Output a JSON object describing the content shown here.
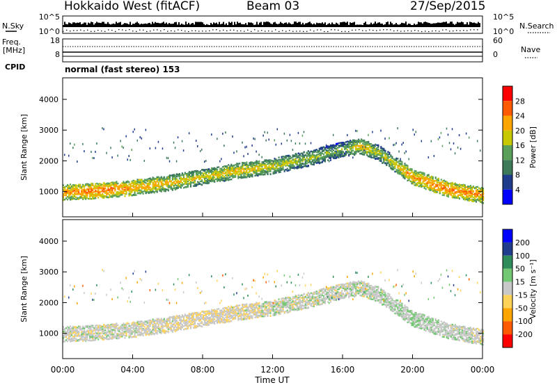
{
  "header": {
    "title": "Hokkaido West (fitACF)",
    "beam": "Beam 03",
    "date": "27/Sep/2015"
  },
  "noise_panel": {
    "left_label": "N.Sky",
    "right_label": "N.Search",
    "left_ticks": [
      "10^5",
      "10^0"
    ],
    "right_ticks": [
      "10^5",
      "10^0"
    ]
  },
  "freq_panel": {
    "left_label_line1": "Freq.",
    "left_label_line2": "[MHz]",
    "right_label": "Nave",
    "left_ticks": [
      "18",
      "8"
    ],
    "right_ticks": [
      "60",
      "0"
    ],
    "cpid_label": "CPID",
    "cpid_text": "normal (fast stereo) 153"
  },
  "colors": {
    "power_scale": [
      "#0000ff",
      "#1f3d8c",
      "#3d7a5a",
      "#5aa05a",
      "#c8c800",
      "#ffa500",
      "#ff5a00",
      "#ff0000"
    ],
    "velocity_scale": [
      "#ff0000",
      "#ff5a00",
      "#ffa500",
      "#ffd25a",
      "#c8c8c8",
      "#73c873",
      "#2d8c5a",
      "#1f3d8c",
      "#0000ff"
    ]
  },
  "chart_data": [
    {
      "type": "heatmap",
      "title": "",
      "xlabel": "Time UT",
      "ylabel": "Slant Range [km]",
      "x_ticks": [
        "00:00",
        "04:00",
        "08:00",
        "12:00",
        "16:00",
        "20:00",
        "00:00"
      ],
      "y_ticks": [
        "1000",
        "2000",
        "3000",
        "4000"
      ],
      "xlim": [
        0,
        24
      ],
      "ylim": [
        180,
        4700
      ],
      "colorbar": {
        "label": "Power [dB]",
        "ticks": [
          "28",
          "24",
          "20",
          "16",
          "12",
          "8",
          "4"
        ],
        "range": [
          0,
          30
        ]
      },
      "scatter_band": [
        {
          "time": 0,
          "range_km": 1000,
          "power_db": 22
        },
        {
          "time": 2,
          "range_km": 1050,
          "power_db": 24
        },
        {
          "time": 4,
          "range_km": 1150,
          "power_db": 22
        },
        {
          "time": 6,
          "range_km": 1300,
          "power_db": 20
        },
        {
          "time": 8,
          "range_km": 1500,
          "power_db": 18
        },
        {
          "time": 10,
          "range_km": 1700,
          "power_db": 20
        },
        {
          "time": 12,
          "range_km": 1850,
          "power_db": 18
        },
        {
          "time": 14,
          "range_km": 2100,
          "power_db": 16
        },
        {
          "time": 16,
          "range_km": 2400,
          "power_db": 14
        },
        {
          "time": 17,
          "range_km": 2500,
          "power_db": 20
        },
        {
          "time": 18,
          "range_km": 2300,
          "power_db": 16
        },
        {
          "time": 20,
          "range_km": 1500,
          "power_db": 22
        },
        {
          "time": 22,
          "range_km": 1100,
          "power_db": 24
        },
        {
          "time": 24,
          "range_km": 900,
          "power_db": 22
        }
      ]
    },
    {
      "type": "heatmap",
      "title": "",
      "xlabel": "Time UT",
      "ylabel": "Slant Range [km]",
      "x_ticks": [
        "00:00",
        "04:00",
        "08:00",
        "12:00",
        "16:00",
        "20:00",
        "00:00"
      ],
      "y_ticks": [
        "1000",
        "2000",
        "3000",
        "4000"
      ],
      "xlim": [
        0,
        24
      ],
      "ylim": [
        180,
        4700
      ],
      "colorbar": {
        "label": "Velocity [m s⁻¹]",
        "ticks": [
          "200",
          "100",
          "50",
          "15",
          "-15",
          "-50",
          "-100",
          "-200"
        ],
        "range": [
          -250,
          250
        ]
      },
      "scatter_band": [
        {
          "time": 0,
          "range_km": 1000,
          "velocity": 0
        },
        {
          "time": 4,
          "range_km": 1150,
          "velocity": 0
        },
        {
          "time": 8,
          "range_km": 1500,
          "velocity": -20
        },
        {
          "time": 12,
          "range_km": 1850,
          "velocity": 0
        },
        {
          "time": 16,
          "range_km": 2400,
          "velocity": 0
        },
        {
          "time": 20,
          "range_km": 1500,
          "velocity": 20
        },
        {
          "time": 24,
          "range_km": 900,
          "velocity": 0
        }
      ]
    }
  ]
}
